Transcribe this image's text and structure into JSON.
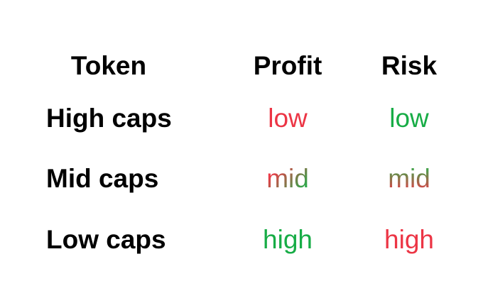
{
  "headers": [
    "Token",
    "Profit",
    "Risk"
  ],
  "colors": {
    "red": "#ec3545",
    "green": "#17ac46"
  },
  "rows": [
    {
      "token": "High caps",
      "profit": "low",
      "risk": "low",
      "profit_color": "red",
      "risk_color": "green"
    },
    {
      "token": "Mid caps",
      "profit": "mid",
      "risk": "mid",
      "profit_color": "red-to-green gradient",
      "risk_color": "green-to-red gradient"
    },
    {
      "token": "Low caps",
      "profit": "high",
      "risk": "high",
      "profit_color": "green",
      "risk_color": "red"
    }
  ]
}
